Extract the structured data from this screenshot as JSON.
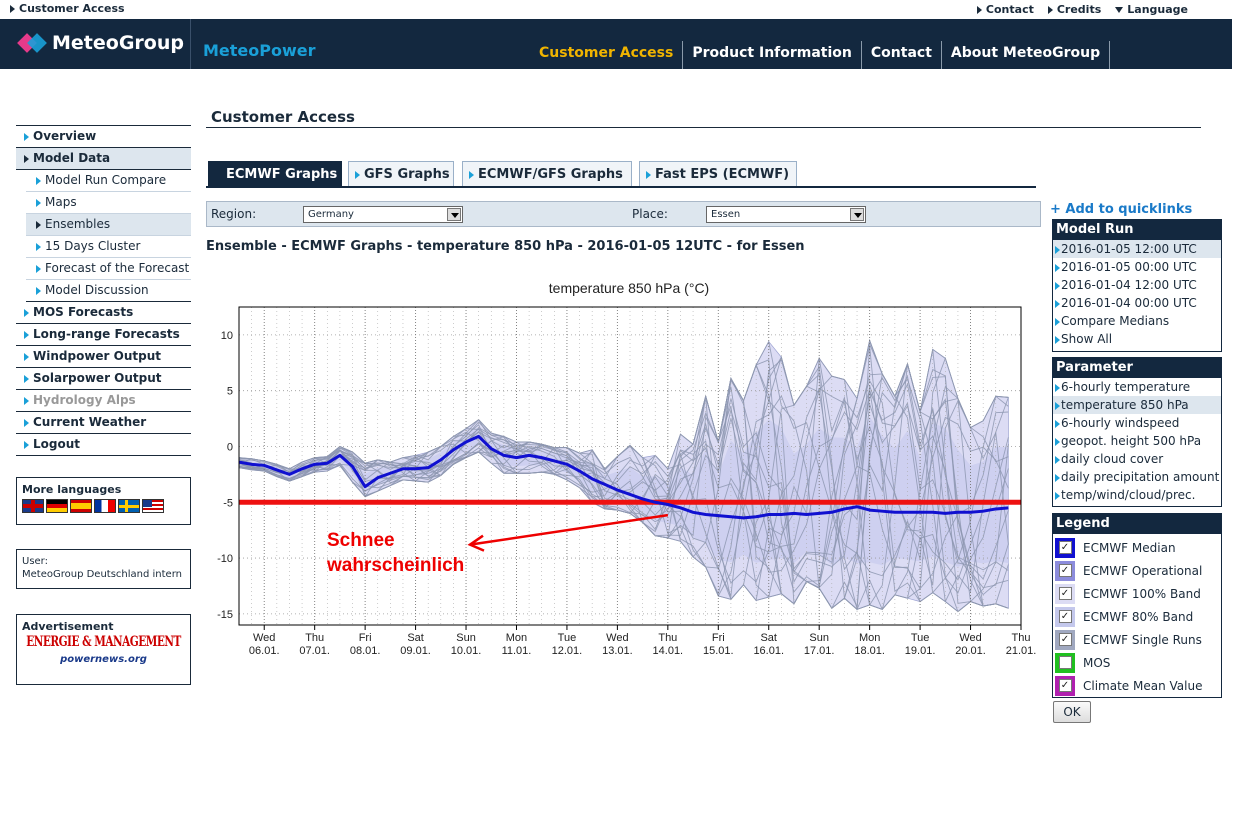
{
  "topbar": {
    "customer_access": "Customer Access",
    "links": [
      "Contact",
      "Credits",
      "Language"
    ]
  },
  "header": {
    "brand": "MeteoGroup",
    "product": "MeteoPower",
    "nav": [
      "Customer Access",
      "Product Information",
      "Contact",
      "About MeteoGroup"
    ]
  },
  "sidebar": {
    "items": [
      "Overview",
      "Model Data",
      "Model Run Compare",
      "Maps",
      "Ensembles",
      "15 Days Cluster",
      "Forecast of the Forecast",
      "Model Discussion",
      "MOS Forecasts",
      "Long-range Forecasts",
      "Windpower Output",
      "Solarpower Output",
      "Hydrology Alps",
      "Current Weather",
      "Logout"
    ],
    "more_languages": "More languages",
    "user_label": "User:",
    "user_name": "MeteoGroup Deutschland intern",
    "advertisement": "Advertisement",
    "ad_title": "ENERGIE & MANAGEMENT",
    "ad_sub": "powernews.org"
  },
  "main": {
    "title": "Customer Access",
    "tabs": [
      "ECMWF Graphs",
      "GFS Graphs",
      "ECMWF/GFS Graphs",
      "Fast EPS (ECMWF)"
    ],
    "region_label": "Region:",
    "region_value": "Germany",
    "place_label": "Place:",
    "place_value": "Essen",
    "graph_title": "Ensemble - ECMWF Graphs - temperature 850 hPa - 2016-01-05 12UTC - for Essen"
  },
  "right": {
    "add_quicklinks": "+ Add to quicklinks",
    "model_run_title": "Model Run",
    "model_runs": [
      "2016-01-05 12:00 UTC",
      "2016-01-05 00:00 UTC",
      "2016-01-04 12:00 UTC",
      "2016-01-04 00:00 UTC",
      "Compare Medians",
      "Show All"
    ],
    "parameter_title": "Parameter",
    "parameters": [
      "6-hourly temperature",
      "temperature 850 hPa",
      "6-hourly windspeed",
      "geopot. height 500 hPa",
      "daily cloud cover",
      "daily precipitation amount",
      "temp/wind/cloud/prec."
    ],
    "legend_title": "Legend",
    "legend": [
      {
        "label": "ECMWF Median",
        "color": "#1010d0",
        "checked": true
      },
      {
        "label": "ECMWF Operational",
        "color": "#8c8cdc",
        "checked": true
      },
      {
        "label": "ECMWF 100% Band",
        "color": "#dcdcf4",
        "checked": true
      },
      {
        "label": "ECMWF 80% Band",
        "color": "#c4c8ec",
        "checked": true
      },
      {
        "label": "ECMWF Single Runs",
        "color": "#a0a8c0",
        "checked": true
      },
      {
        "label": "MOS",
        "color": "#20c020",
        "checked": false
      },
      {
        "label": "Climate Mean Value",
        "color": "#b020b0",
        "checked": true
      }
    ],
    "ok": "OK"
  },
  "chart_data": {
    "type": "line",
    "title": "temperature 850 hPa (°C)",
    "xlabel": "",
    "ylabel": "",
    "ylim": [
      -16,
      12.5
    ],
    "yticks": [
      10,
      5,
      0,
      -5,
      -10,
      -15
    ],
    "xticks": [
      {
        "day": "Wed",
        "date": "06.01."
      },
      {
        "day": "Thu",
        "date": "07.01."
      },
      {
        "day": "Fri",
        "date": "08.01."
      },
      {
        "day": "Sat",
        "date": "09.01."
      },
      {
        "day": "Sun",
        "date": "10.01."
      },
      {
        "day": "Mon",
        "date": "11.01."
      },
      {
        "day": "Tue",
        "date": "12.01."
      },
      {
        "day": "Wed",
        "date": "13.01."
      },
      {
        "day": "Thu",
        "date": "14.01."
      },
      {
        "day": "Fri",
        "date": "15.01."
      },
      {
        "day": "Sat",
        "date": "16.01."
      },
      {
        "day": "Sun",
        "date": "17.01."
      },
      {
        "day": "Mon",
        "date": "18.01."
      },
      {
        "day": "Tue",
        "date": "19.01."
      },
      {
        "day": "Wed",
        "date": "20.01."
      },
      {
        "day": "Thu",
        "date": "21.01."
      }
    ],
    "median_x": [
      -0.5,
      -0.25,
      0,
      0.25,
      0.5,
      0.75,
      1,
      1.25,
      1.5,
      1.75,
      2,
      2.25,
      2.5,
      2.75,
      3,
      3.25,
      3.5,
      3.75,
      4,
      4.25,
      4.5,
      4.75,
      5,
      5.25,
      5.5,
      5.75,
      6,
      6.25,
      6.5,
      6.75,
      7,
      7.25,
      7.5,
      7.75,
      8,
      8.25,
      8.5,
      8.75,
      9,
      9.25,
      9.5,
      9.75,
      10,
      10.25,
      10.5,
      10.75,
      11,
      11.25,
      11.5,
      11.75,
      12,
      12.25,
      12.5,
      12.75,
      13,
      13.25,
      13.5,
      13.75,
      14,
      14.25,
      14.5,
      14.75
    ],
    "median": [
      -1.4,
      -1.6,
      -1.7,
      -2.1,
      -2.5,
      -2.0,
      -1.6,
      -1.5,
      -0.8,
      -1.8,
      -3.6,
      -2.8,
      -2.4,
      -2.0,
      -2.0,
      -1.9,
      -1.2,
      -0.3,
      0.4,
      0.9,
      -0.2,
      -0.8,
      -1.0,
      -0.8,
      -1.0,
      -1.3,
      -1.6,
      -2.2,
      -2.9,
      -3.4,
      -3.9,
      -4.3,
      -4.7,
      -5.0,
      -5.2,
      -5.5,
      -5.9,
      -6.1,
      -6.2,
      -6.3,
      -6.4,
      -6.3,
      -6.1,
      -6.1,
      -6.0,
      -6.1,
      -6.0,
      -5.9,
      -5.6,
      -5.4,
      -5.7,
      -5.8,
      -5.9,
      -5.9,
      -5.9,
      -5.9,
      -6.0,
      -5.9,
      -5.9,
      -5.8,
      -5.6,
      -5.5
    ],
    "climate_mean": -5.0,
    "band100_upper": [
      -1.0,
      -1.1,
      -1.3,
      -1.6,
      -2.0,
      -1.4,
      -1.0,
      -0.9,
      0.0,
      -0.5,
      -1.5,
      -1.2,
      -1.4,
      -1.0,
      -0.8,
      -0.5,
      0.0,
      0.9,
      1.6,
      2.4,
      1.2,
      0.9,
      0.4,
      0.4,
      0.2,
      -0.1,
      -0.1,
      -0.6,
      -0.3,
      -2.0,
      -0.9,
      0.1,
      -1.0,
      -0.8,
      -2.0,
      1.1,
      0.2,
      4.5,
      0.4,
      6.1,
      4.1,
      7.3,
      9.4,
      8.0,
      3.7,
      5.4,
      7.9,
      6.3,
      6.0,
      4.3,
      9.5,
      6.5,
      4.5,
      7.4,
      3.1,
      8.7,
      7.9,
      4.3,
      1.7,
      2.3,
      4.5,
      4.4
    ],
    "band100_lower": [
      -1.9,
      -2.1,
      -2.2,
      -2.7,
      -3.1,
      -2.7,
      -2.3,
      -2.2,
      -1.7,
      -3.2,
      -4.5,
      -4.0,
      -3.5,
      -3.0,
      -3.1,
      -3.2,
      -2.6,
      -1.6,
      -1.0,
      -0.5,
      -1.5,
      -2.4,
      -2.4,
      -2.4,
      -2.3,
      -2.5,
      -3.0,
      -3.7,
      -5.0,
      -5.6,
      -5.7,
      -6.0,
      -6.8,
      -8.0,
      -8.2,
      -8.5,
      -9.9,
      -10.8,
      -13.4,
      -13.7,
      -12.4,
      -13.8,
      -13.5,
      -13.2,
      -14.1,
      -12.1,
      -12.7,
      -14.5,
      -13.6,
      -14.6,
      -14.2,
      -14.6,
      -13.3,
      -13.6,
      -13.9,
      -13.1,
      -13.9,
      -14.8,
      -13.9,
      -14.3,
      -14.1,
      -14.5
    ],
    "annotation": "Schnee wahrscheinlich"
  }
}
